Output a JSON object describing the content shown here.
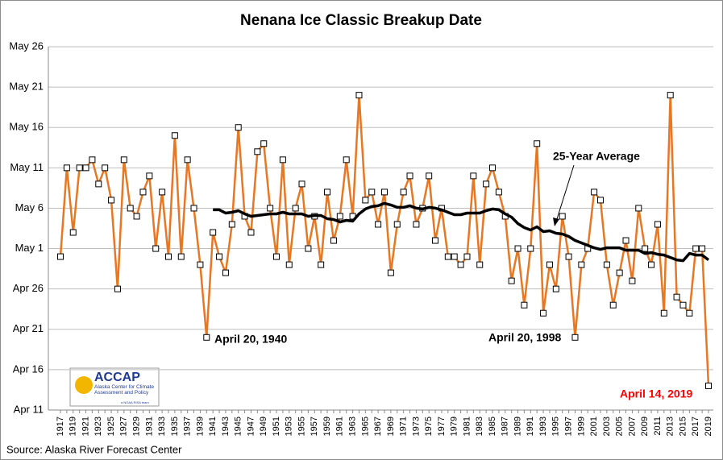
{
  "chart_data": {
    "type": "line",
    "title": "Nenana Ice Classic Breakup Date",
    "source": "Source: Alaska River Forecast Center",
    "logo": {
      "name": "ACCAP",
      "text": "Alaska Center for Climate Assessment and Policy",
      "tag": "a NOAA RISA team"
    },
    "categories": [
      "1917",
      null,
      "1919",
      null,
      "1921",
      null,
      "1923",
      null,
      "1925",
      null,
      "1927",
      null,
      "1929",
      null,
      "1931",
      null,
      "1933",
      null,
      "1935",
      null,
      "1937",
      null,
      "1939",
      null,
      "1941",
      null,
      "1943",
      null,
      "1945",
      null,
      "1947",
      null,
      "1949",
      null,
      "1951",
      null,
      "1953",
      null,
      "1955",
      null,
      "1957",
      null,
      "1959",
      null,
      "1961",
      null,
      "1963",
      null,
      "1965",
      null,
      "1967",
      null,
      "1969",
      null,
      "1971",
      null,
      "1973",
      null,
      "1975",
      null,
      "1977",
      null,
      "1979",
      null,
      "1981",
      null,
      "1983",
      null,
      "1985",
      null,
      "1987",
      null,
      "1989",
      null,
      "1991",
      null,
      "1993",
      null,
      "1995",
      null,
      "1997",
      null,
      "1999",
      null,
      "2001",
      null,
      "2003",
      null,
      "2005",
      null,
      "2007",
      null,
      "2009",
      null,
      "2011",
      null,
      "2013",
      null,
      "2015",
      null,
      "2017",
      null,
      "2019"
    ],
    "series": [
      {
        "name": "Breakup Date",
        "color": "#e87722",
        "marker": "square",
        "values": [
          30,
          41,
          33,
          41,
          41,
          42,
          39,
          41,
          37,
          26,
          42,
          36,
          35,
          38,
          40,
          31,
          38,
          30,
          45,
          30,
          42,
          36,
          29,
          20,
          33,
          30,
          28,
          34,
          46,
          35,
          33,
          43,
          44,
          36,
          30,
          42,
          29,
          36,
          39,
          31,
          35,
          29,
          38,
          32,
          35,
          42,
          35,
          50,
          37,
          38,
          34,
          38,
          28,
          34,
          38,
          40,
          34,
          36,
          40,
          32,
          36,
          30,
          30,
          29,
          30,
          40,
          29,
          39,
          41,
          38,
          35,
          27,
          31,
          24,
          31,
          44,
          23,
          29,
          26,
          35,
          30,
          20,
          29,
          31,
          38,
          37,
          29,
          24,
          28,
          32,
          27,
          36,
          31,
          29,
          34,
          23,
          50,
          25,
          24,
          23,
          31,
          31,
          14
        ]
      },
      {
        "name": "25-Year Average",
        "color": "#000000",
        "marker": "none",
        "values": [
          null,
          null,
          null,
          null,
          null,
          null,
          null,
          null,
          null,
          null,
          null,
          null,
          null,
          null,
          null,
          null,
          null,
          null,
          null,
          null,
          null,
          null,
          null,
          null,
          35.8,
          35.8,
          35.4,
          35.5,
          35.7,
          35.3,
          35.0,
          35.1,
          35.2,
          35.3,
          35.3,
          35.5,
          35.3,
          35.3,
          35.3,
          35.0,
          35.1,
          35.1,
          34.7,
          34.6,
          34.3,
          34.5,
          34.4,
          35.3,
          35.9,
          36.2,
          36.3,
          36.6,
          36.4,
          36.1,
          36.1,
          36.3,
          36.0,
          35.9,
          36.1,
          36.0,
          35.8,
          35.5,
          35.2,
          35.2,
          35.4,
          35.4,
          35.4,
          35.7,
          35.9,
          35.8,
          35.3,
          34.9,
          34.1,
          33.6,
          33.3,
          33.7,
          33.1,
          33.2,
          32.9,
          32.8,
          32.5,
          32.0,
          31.7,
          31.4,
          31.1,
          30.9,
          31.1,
          31.1,
          31.1,
          30.8,
          30.8,
          30.8,
          30.4,
          30.5,
          30.3,
          30.2,
          29.9,
          29.6,
          29.5,
          30.4,
          30.2,
          30.2,
          29.6
        ]
      }
    ],
    "ylim": [
      11,
      56
    ],
    "yticks": [
      {
        "value": 11,
        "label": "Apr 11"
      },
      {
        "value": 16,
        "label": "Apr 16"
      },
      {
        "value": 21,
        "label": "Apr 21"
      },
      {
        "value": 26,
        "label": "Apr 26"
      },
      {
        "value": 31,
        "label": "May 1"
      },
      {
        "value": 36,
        "label": "May 6"
      },
      {
        "value": 41,
        "label": "May 11"
      },
      {
        "value": 46,
        "label": "May 16"
      },
      {
        "value": 51,
        "label": "May 21"
      },
      {
        "value": 56,
        "label": "May 26"
      }
    ],
    "grid": true,
    "annotations": [
      {
        "text": "April 20, 1940",
        "color": "#000000"
      },
      {
        "text": "April 20, 1998",
        "color": "#000000"
      },
      {
        "text": "April 14, 2019",
        "color": "#ff0000"
      },
      {
        "text": "25-Year Average",
        "color": "#000000"
      }
    ]
  }
}
